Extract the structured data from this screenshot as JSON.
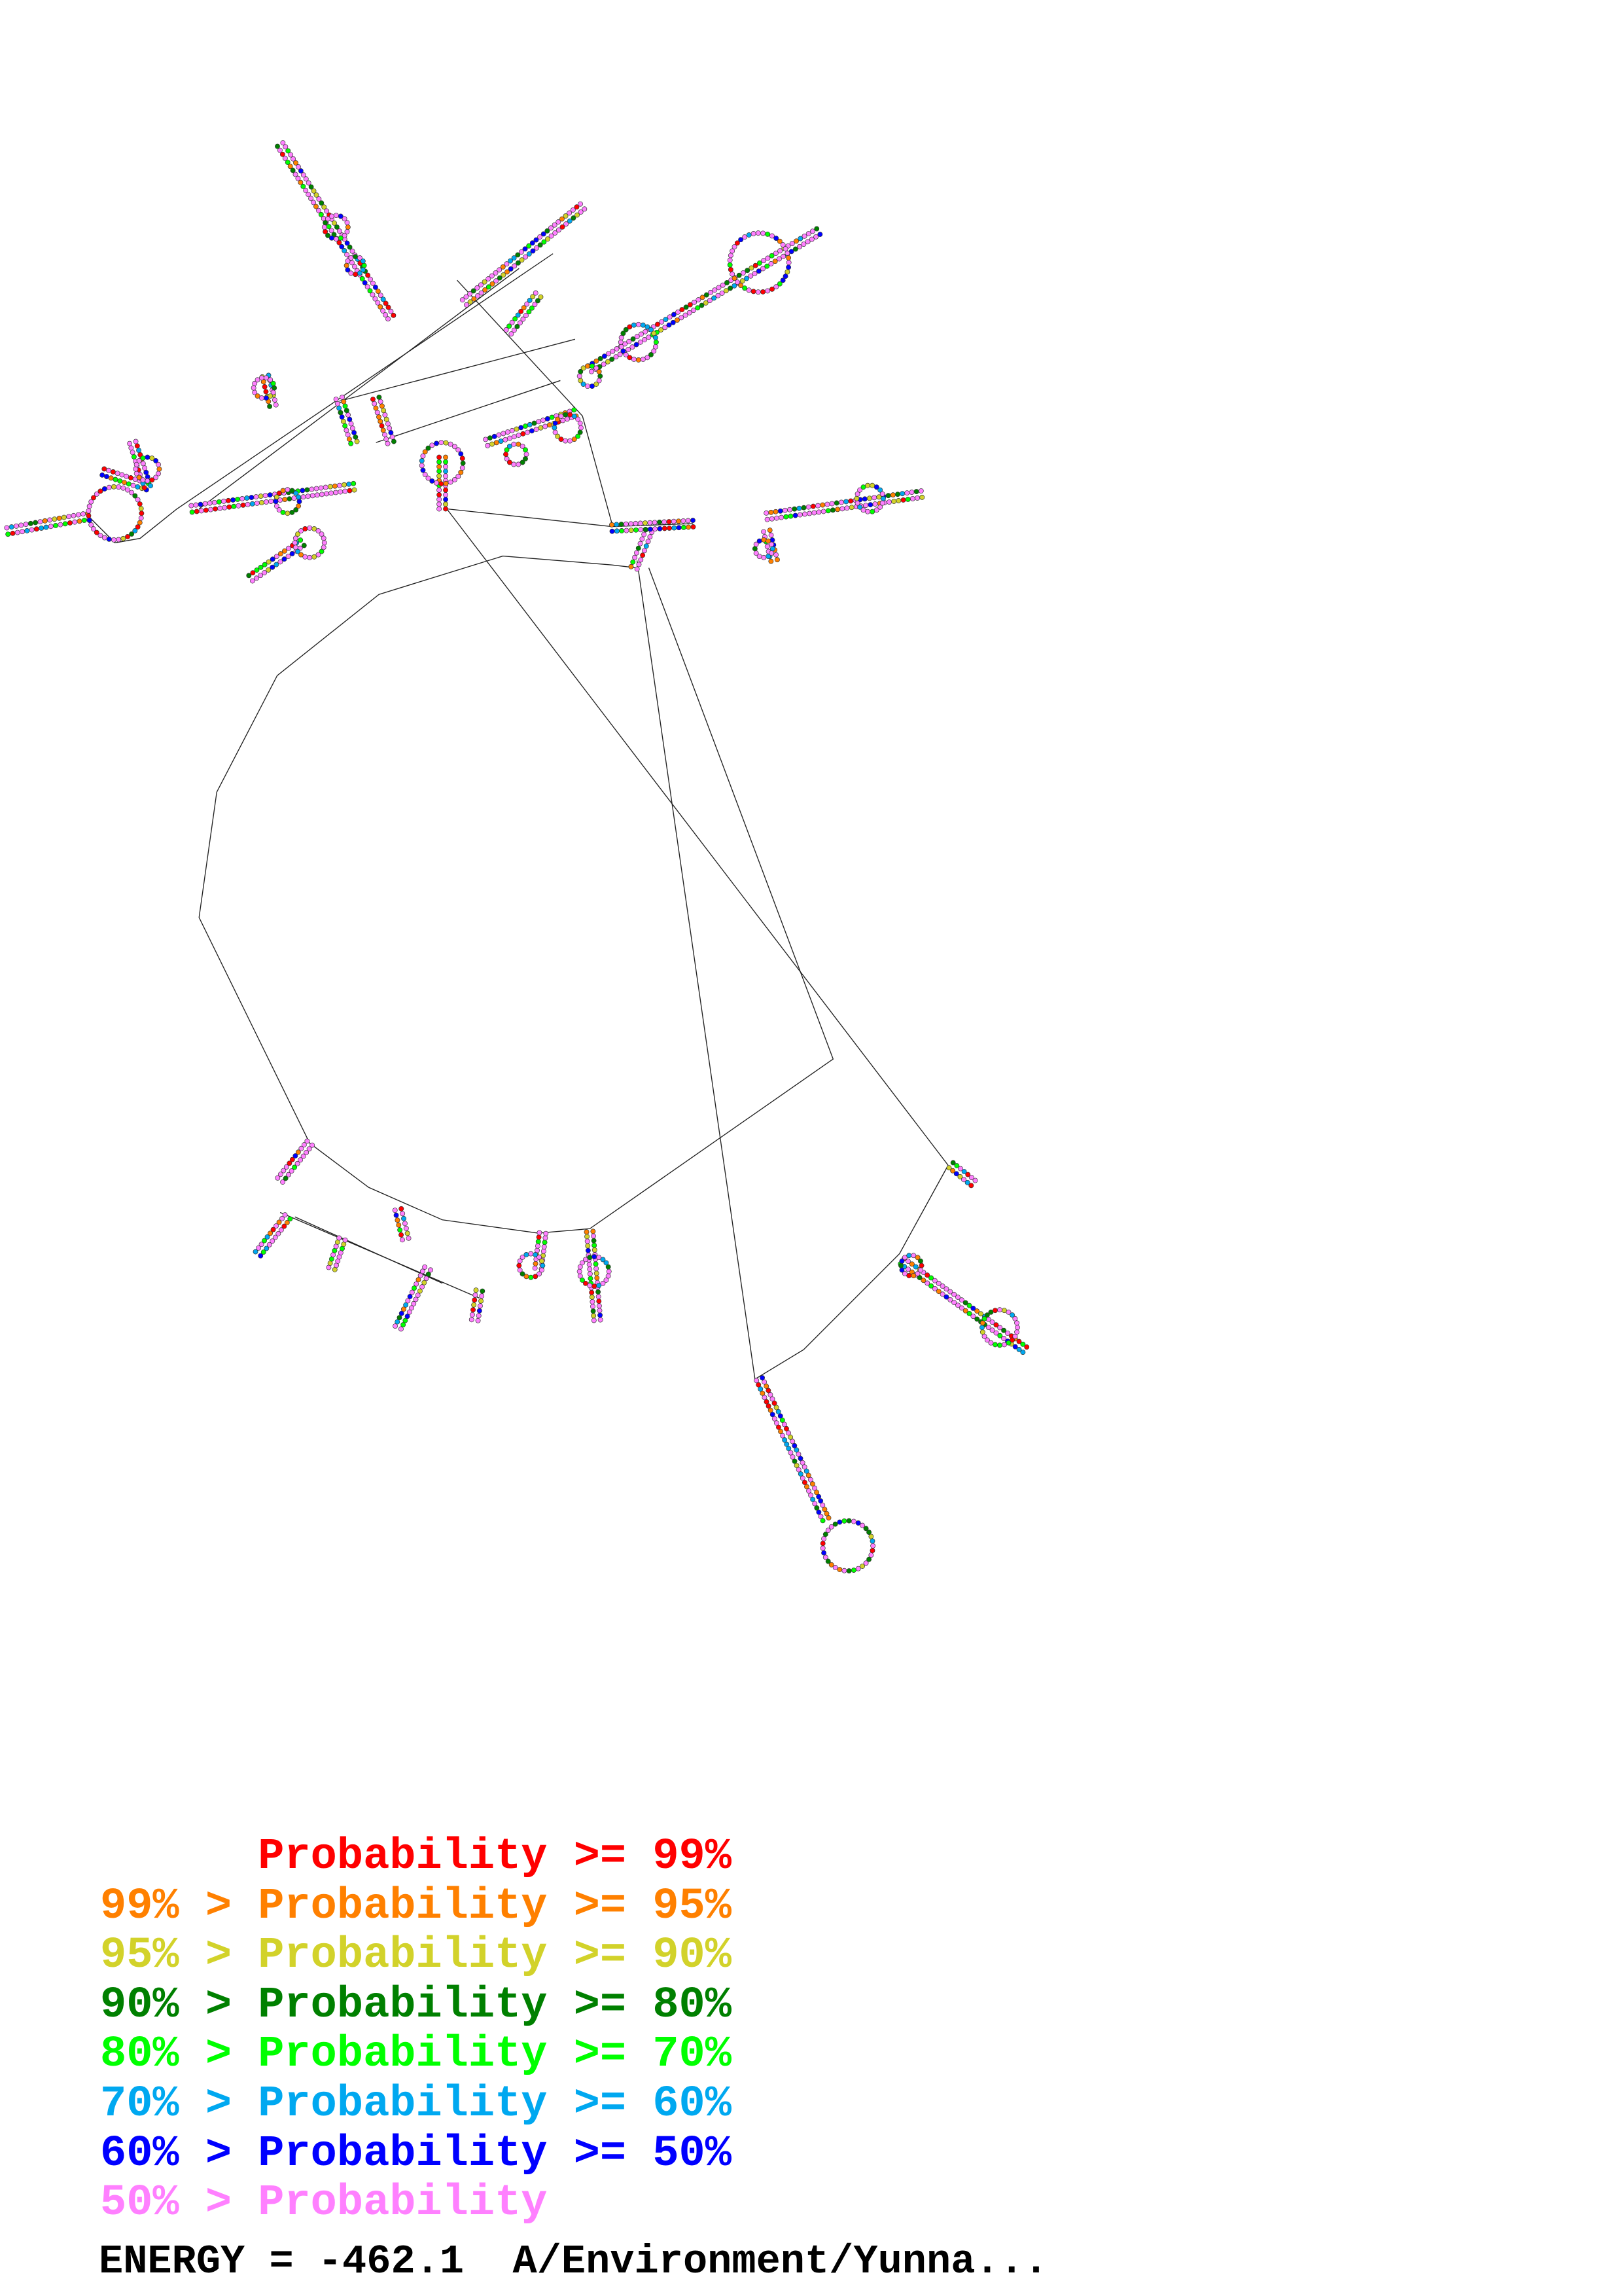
{
  "legend": {
    "rows": [
      {
        "text": "      Probability >= 99%",
        "color": "#ff0000"
      },
      {
        "text": "99% > Probability >= 95%",
        "color": "#ff8000"
      },
      {
        "text": "95% > Probability >= 90%",
        "color": "#d2d22a"
      },
      {
        "text": "90% > Probability >= 80%",
        "color": "#008000"
      },
      {
        "text": "80% > Probability >= 70%",
        "color": "#00ff00"
      },
      {
        "text": "70% > Probability >= 60%",
        "color": "#00a8f0"
      },
      {
        "text": "60% > Probability >= 50%",
        "color": "#0000ff"
      },
      {
        "text": "50% > Probability",
        "color": "#ff80ff"
      }
    ]
  },
  "energy": {
    "text": "ENERGY = -462.1  A/Environment/Yunna..."
  },
  "diagram": {
    "type": "RNA secondary structure",
    "bead_colors": [
      "#ff0000",
      "#ff8000",
      "#d2d22a",
      "#008000",
      "#00ff00",
      "#00a8f0",
      "#0000ff",
      "#ff80ff"
    ]
  }
}
